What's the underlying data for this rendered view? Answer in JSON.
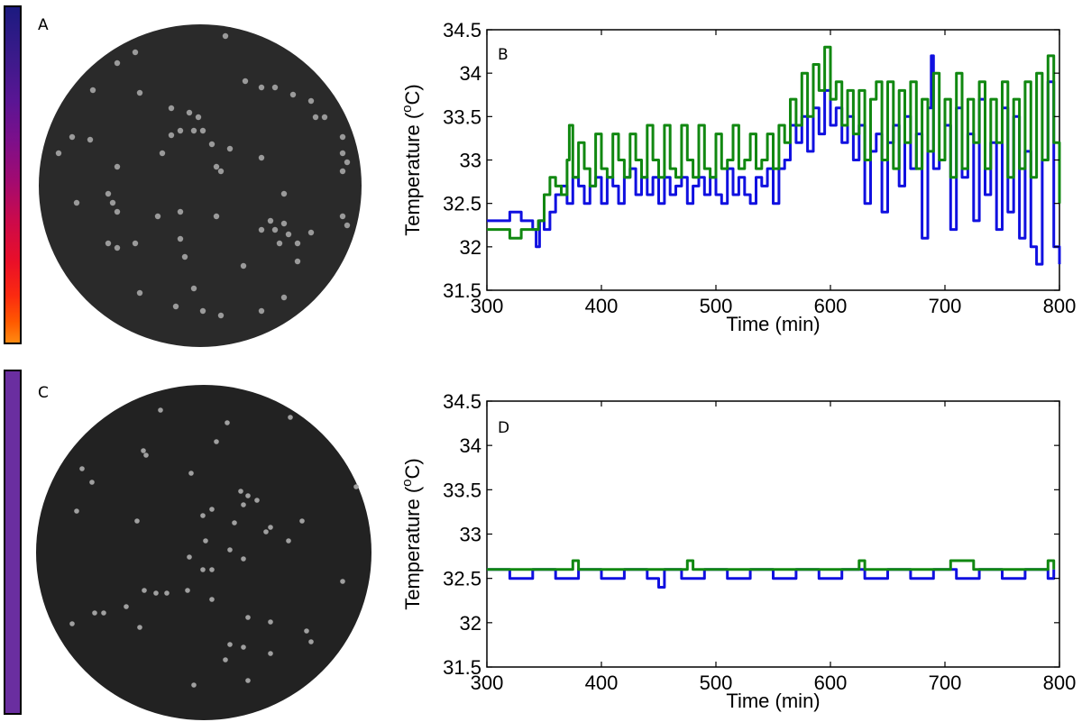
{
  "panels": {
    "a": {
      "label": "A",
      "colorbar": "fire-gradient"
    },
    "b": {
      "label": "B"
    },
    "c": {
      "label": "C",
      "colorbar": "#6a2ea0"
    },
    "d": {
      "label": "D"
    }
  },
  "chart_data": [
    {
      "type": "line",
      "panel": "B",
      "xlabel": "Time (min)",
      "ylabel": "Temperature (",
      "ylabel_sup": "o",
      "ylabel_end": "C)",
      "xlim": [
        300,
        800
      ],
      "ylim": [
        31.5,
        34.5
      ],
      "xticks": [
        "300",
        "400",
        "500",
        "600",
        "700",
        "800"
      ],
      "yticks": [
        "31.5",
        "32",
        "32.5",
        "33",
        "33.5",
        "34",
        "34.5"
      ],
      "series": [
        {
          "name": "blue",
          "color": "#1010e0",
          "x": [
            300,
            310,
            320,
            330,
            340,
            343,
            346,
            350,
            355,
            360,
            365,
            370,
            375,
            380,
            385,
            390,
            395,
            400,
            405,
            410,
            415,
            420,
            425,
            430,
            435,
            440,
            445,
            450,
            455,
            460,
            465,
            470,
            475,
            480,
            485,
            490,
            495,
            500,
            505,
            510,
            515,
            520,
            525,
            530,
            535,
            540,
            545,
            550,
            555,
            560,
            565,
            570,
            575,
            580,
            585,
            590,
            595,
            600,
            605,
            610,
            615,
            620,
            625,
            630,
            635,
            640,
            645,
            650,
            655,
            660,
            665,
            670,
            675,
            680,
            685,
            688,
            690,
            695,
            700,
            705,
            710,
            715,
            720,
            725,
            730,
            735,
            740,
            745,
            750,
            755,
            760,
            765,
            770,
            775,
            780,
            785,
            790,
            795,
            800
          ],
          "y": [
            32.3,
            32.3,
            32.4,
            32.3,
            32.2,
            32.0,
            32.3,
            32.2,
            32.4,
            32.6,
            32.7,
            32.5,
            32.8,
            32.7,
            32.5,
            32.7,
            32.8,
            32.5,
            32.8,
            32.7,
            32.5,
            32.8,
            32.9,
            32.6,
            32.8,
            32.6,
            32.8,
            32.5,
            32.8,
            32.6,
            32.7,
            32.8,
            32.5,
            32.7,
            32.8,
            32.6,
            32.8,
            32.6,
            32.5,
            32.9,
            32.6,
            32.8,
            32.6,
            32.5,
            32.8,
            32.7,
            32.9,
            32.5,
            32.9,
            33.0,
            33.4,
            33.2,
            33.5,
            33.1,
            33.6,
            33.3,
            33.8,
            33.4,
            33.6,
            33.2,
            33.5,
            33.0,
            33.4,
            32.5,
            33.1,
            33.3,
            32.4,
            33.2,
            33.4,
            32.7,
            33.5,
            32.9,
            33.3,
            32.1,
            33.6,
            34.2,
            32.9,
            33.0,
            33.4,
            32.2,
            33.6,
            32.8,
            33.3,
            32.3,
            33.7,
            32.6,
            33.2,
            32.2,
            33.6,
            32.4,
            33.5,
            32.1,
            33.1,
            32.0,
            31.8,
            33.0,
            33.9,
            32.0,
            31.8
          ]
        },
        {
          "name": "green",
          "color": "#118811",
          "x": [
            300,
            310,
            320,
            330,
            340,
            345,
            350,
            355,
            360,
            365,
            370,
            372,
            375,
            380,
            385,
            390,
            395,
            400,
            405,
            410,
            415,
            420,
            425,
            430,
            435,
            440,
            445,
            450,
            455,
            460,
            465,
            470,
            475,
            480,
            485,
            490,
            495,
            500,
            505,
            510,
            515,
            520,
            525,
            530,
            535,
            540,
            545,
            550,
            555,
            560,
            565,
            570,
            575,
            580,
            585,
            590,
            595,
            600,
            605,
            610,
            615,
            620,
            625,
            630,
            635,
            640,
            645,
            650,
            655,
            660,
            665,
            670,
            675,
            680,
            685,
            690,
            695,
            700,
            705,
            710,
            715,
            720,
            725,
            730,
            735,
            740,
            745,
            750,
            755,
            760,
            765,
            770,
            775,
            780,
            785,
            790,
            795,
            800
          ],
          "y": [
            32.2,
            32.2,
            32.1,
            32.2,
            32.2,
            32.3,
            32.6,
            32.8,
            32.7,
            32.6,
            33.0,
            33.4,
            32.8,
            33.2,
            32.9,
            32.7,
            33.3,
            32.9,
            32.8,
            33.3,
            33.0,
            32.8,
            33.3,
            33.0,
            32.8,
            33.4,
            33.0,
            32.8,
            33.4,
            32.9,
            32.8,
            33.4,
            33.0,
            32.8,
            33.4,
            32.9,
            32.8,
            33.3,
            32.9,
            33.0,
            33.4,
            32.9,
            33.0,
            33.3,
            32.9,
            33.0,
            33.3,
            32.9,
            33.4,
            33.2,
            33.7,
            33.4,
            34.0,
            33.5,
            34.1,
            33.8,
            34.3,
            33.7,
            33.9,
            33.4,
            33.8,
            33.3,
            33.8,
            33.0,
            33.7,
            33.9,
            33.0,
            33.9,
            32.9,
            33.8,
            33.2,
            33.9,
            32.9,
            33.7,
            33.1,
            34.0,
            33.0,
            33.7,
            32.8,
            34.0,
            32.9,
            33.7,
            33.2,
            33.9,
            32.9,
            33.7,
            33.2,
            33.9,
            32.8,
            33.7,
            32.9,
            33.9,
            32.8,
            34.0,
            33.0,
            34.2,
            33.2,
            32.5
          ]
        }
      ]
    },
    {
      "type": "line",
      "panel": "D",
      "xlabel": "Time (min)",
      "ylabel": "Temperature (",
      "ylabel_sup": "o",
      "ylabel_end": "C)",
      "xlim": [
        300,
        800
      ],
      "ylim": [
        31.5,
        34.5
      ],
      "xticks": [
        "300",
        "400",
        "500",
        "600",
        "700",
        "800"
      ],
      "yticks": [
        "31.5",
        "32",
        "32.5",
        "33",
        "33.5",
        "34",
        "34.5"
      ],
      "series": [
        {
          "name": "blue",
          "color": "#1010e0",
          "x": [
            300,
            320,
            340,
            360,
            380,
            400,
            420,
            440,
            445,
            450,
            455,
            470,
            490,
            510,
            530,
            550,
            570,
            590,
            610,
            630,
            650,
            670,
            690,
            710,
            730,
            750,
            770,
            790,
            795
          ],
          "y": [
            32.6,
            32.5,
            32.6,
            32.5,
            32.6,
            32.5,
            32.6,
            32.5,
            32.5,
            32.4,
            32.6,
            32.5,
            32.6,
            32.5,
            32.6,
            32.5,
            32.6,
            32.5,
            32.6,
            32.5,
            32.6,
            32.5,
            32.6,
            32.5,
            32.6,
            32.5,
            32.6,
            32.5,
            32.6
          ]
        },
        {
          "name": "green",
          "color": "#118811",
          "x": [
            300,
            330,
            360,
            375,
            380,
            410,
            440,
            470,
            475,
            480,
            510,
            540,
            570,
            600,
            625,
            630,
            660,
            690,
            700,
            705,
            720,
            725,
            750,
            780,
            790,
            795
          ],
          "y": [
            32.6,
            32.6,
            32.6,
            32.7,
            32.6,
            32.6,
            32.6,
            32.6,
            32.7,
            32.6,
            32.6,
            32.6,
            32.6,
            32.6,
            32.7,
            32.6,
            32.6,
            32.6,
            32.6,
            32.7,
            32.7,
            32.6,
            32.6,
            32.6,
            32.7,
            32.6
          ]
        }
      ]
    }
  ]
}
